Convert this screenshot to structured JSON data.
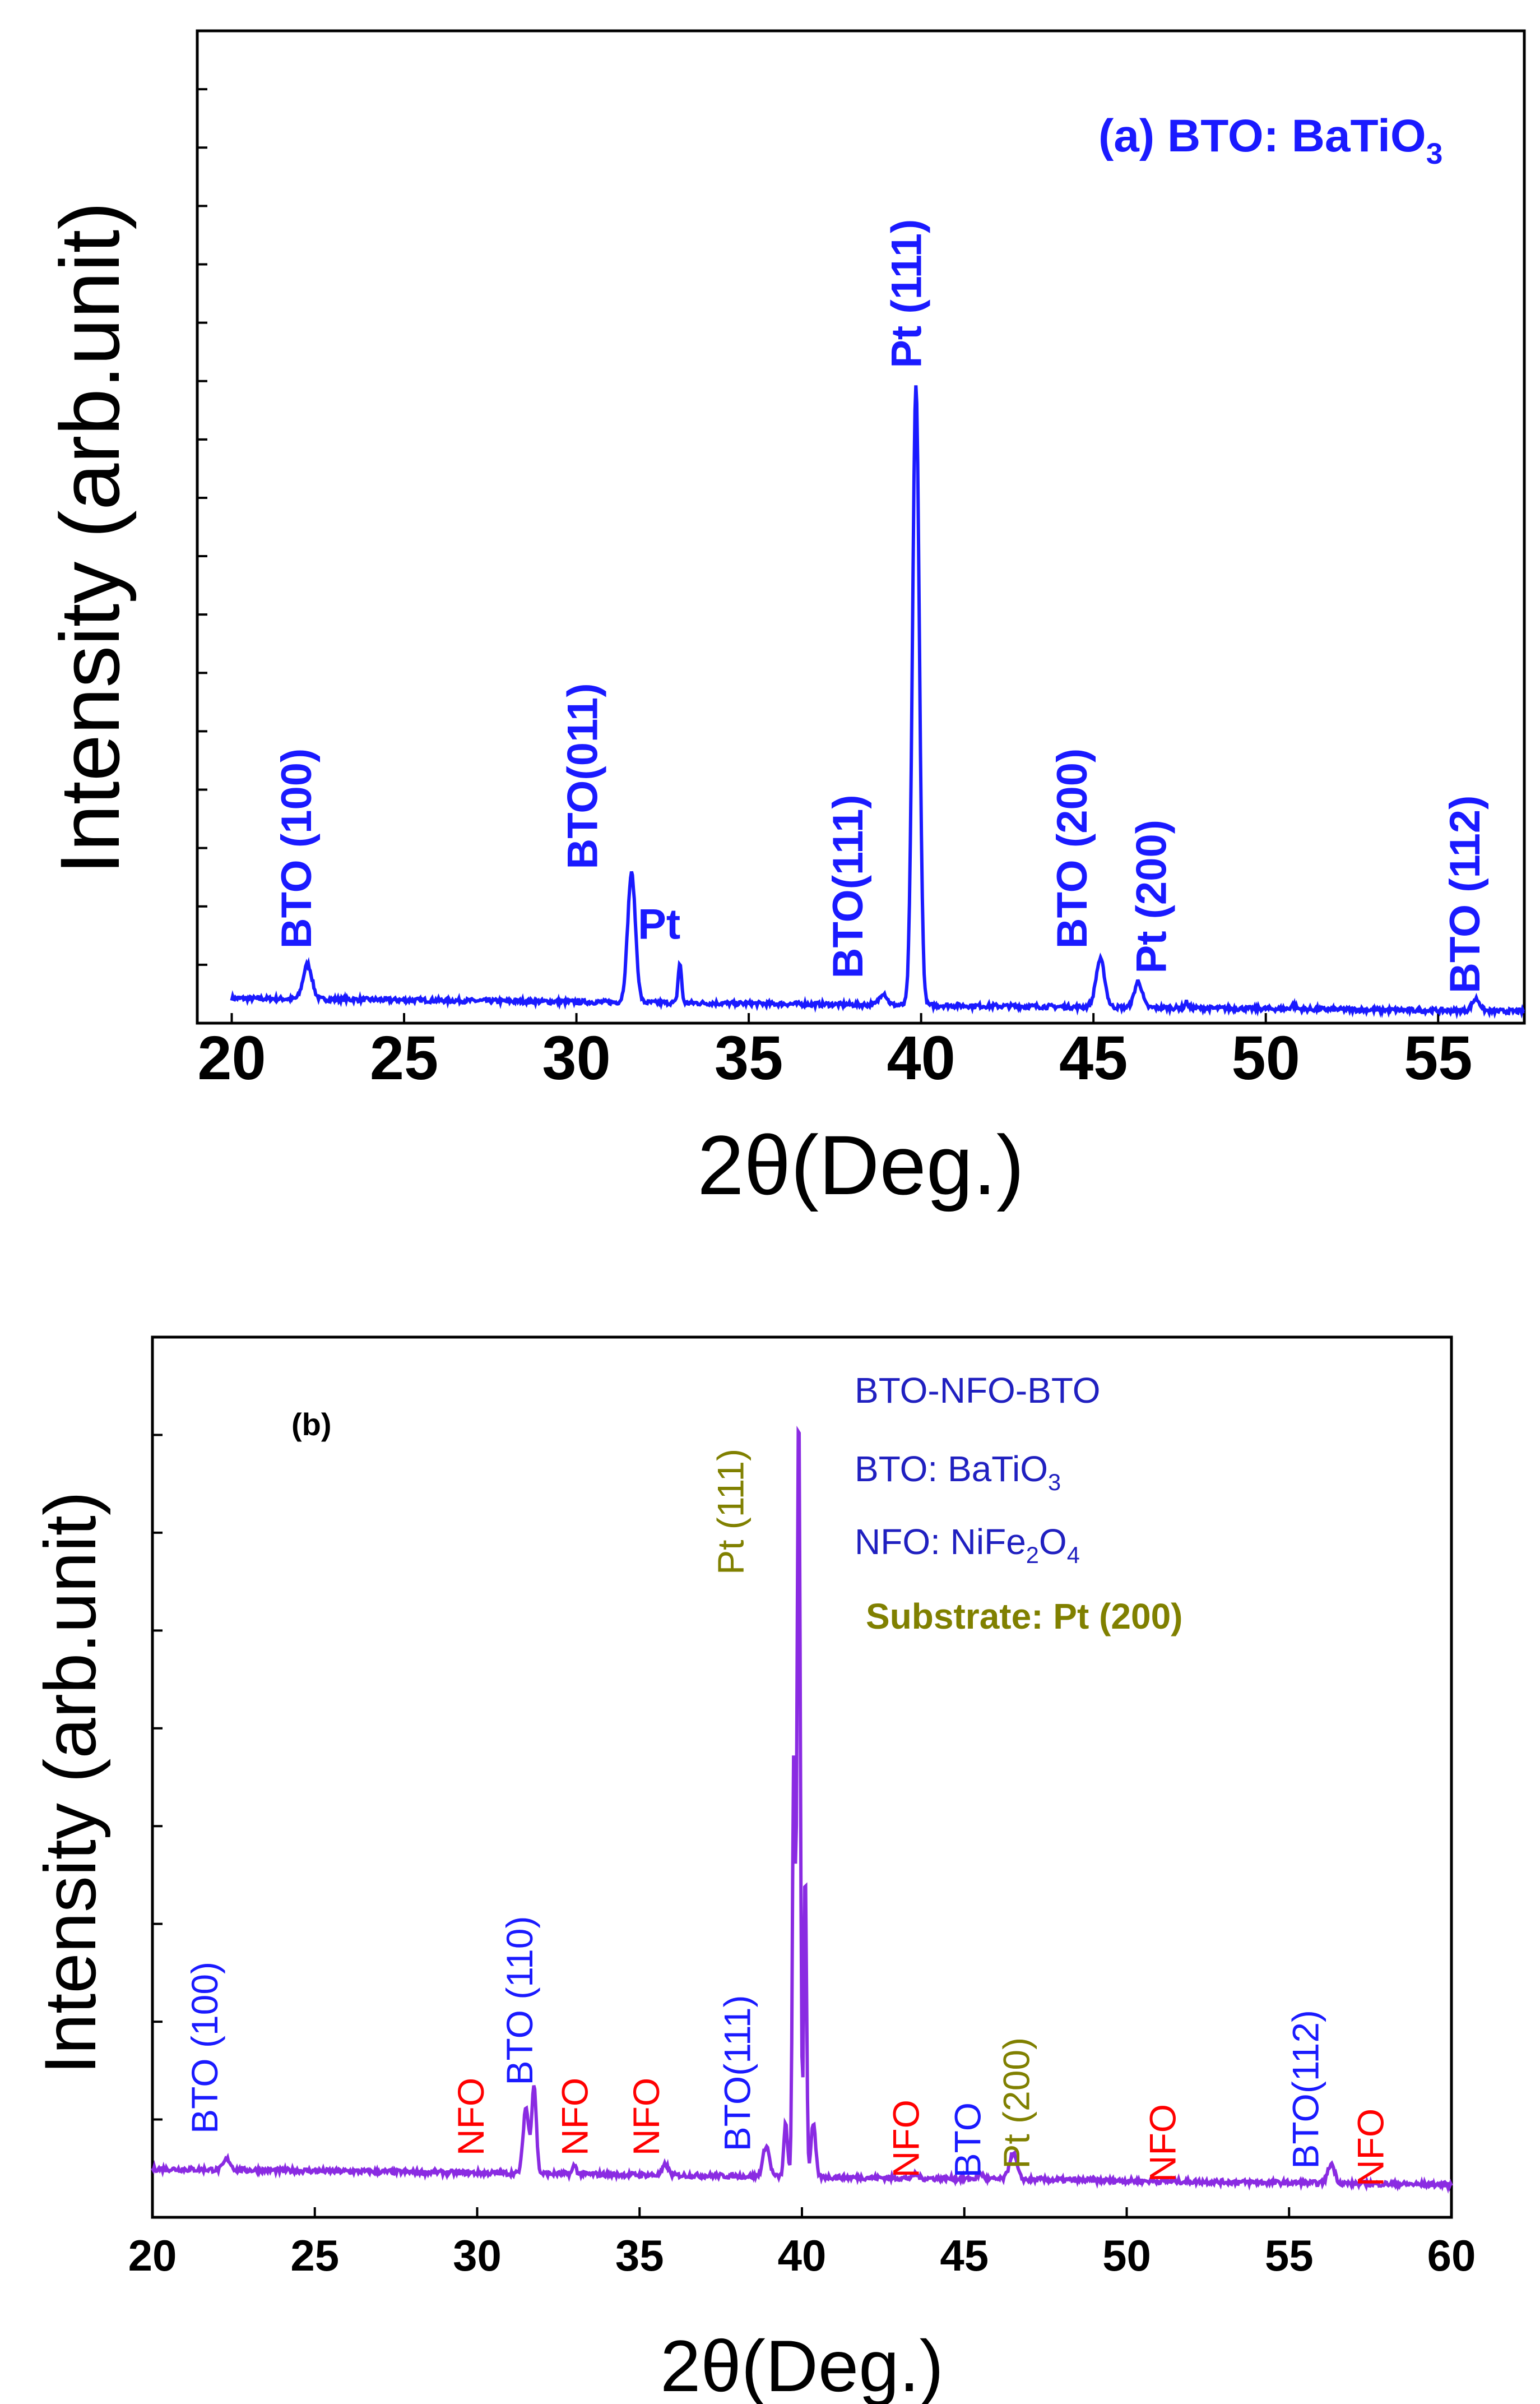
{
  "colors": {
    "blue": "#1a1aff",
    "purple": "#8a2be2",
    "red": "#ff0000",
    "olive": "#808000",
    "navy": "#2020c0"
  },
  "chart_data": [
    {
      "panel": "(a)",
      "type": "line",
      "title": "(a) BTO: BaTiO",
      "title_subscript": "3",
      "xlabel": "2θ(Deg.)",
      "ylabel": "Intensity (arb.unit)",
      "xlim": [
        19,
        57.5
      ],
      "ylim": [
        0,
        100
      ],
      "xticks": [
        20,
        25,
        30,
        35,
        40,
        45,
        50,
        55
      ],
      "ytick_count": 16,
      "baseline": 2.5,
      "peaks": [
        {
          "x": 22.2,
          "h": 3.5,
          "w": 0.18
        },
        {
          "x": 31.6,
          "h": 13.0,
          "w": 0.16
        },
        {
          "x": 33.0,
          "h": 4.0,
          "w": 0.07
        },
        {
          "x": 38.9,
          "h": 1.2,
          "w": 0.15
        },
        {
          "x": 39.85,
          "h": 62.5,
          "w": 0.14
        },
        {
          "x": 45.2,
          "h": 4.8,
          "w": 0.18
        },
        {
          "x": 46.3,
          "h": 2.6,
          "w": 0.16
        },
        {
          "x": 47.7,
          "h": 0.6,
          "w": 0.06
        },
        {
          "x": 50.8,
          "h": 0.4,
          "w": 0.1
        },
        {
          "x": 56.1,
          "h": 1.2,
          "w": 0.16
        }
      ],
      "labels": [
        {
          "text": "BTO (100)",
          "x": 22.3,
          "y": 7.5,
          "rotate": true,
          "color": "blue"
        },
        {
          "text": "BTO(011)",
          "x": 30.6,
          "y": 15.5,
          "rotate": true,
          "color": "blue"
        },
        {
          "text": "Pt",
          "x": 32.4,
          "y": 8.5,
          "rotate": false,
          "color": "blue"
        },
        {
          "text": "BTO(111)",
          "x": 38.3,
          "y": 4.5,
          "rotate": true,
          "color": "blue"
        },
        {
          "text": "Pt (111)",
          "x": 40.0,
          "y": 66.0,
          "rotate": true,
          "color": "blue"
        },
        {
          "text": "BTO (200)",
          "x": 44.8,
          "y": 7.5,
          "rotate": true,
          "color": "blue"
        },
        {
          "text": "Pt (200)",
          "x": 47.1,
          "y": 5.0,
          "rotate": true,
          "color": "blue"
        },
        {
          "text": "BTO (112)",
          "x": 56.2,
          "y": 3.0,
          "rotate": true,
          "color": "blue"
        }
      ]
    },
    {
      "panel": "(b)",
      "type": "line",
      "panel_label": "(b)",
      "xlabel": "2θ(Deg.)",
      "ylabel": "Intensity (arb.unit)",
      "xlim": [
        20,
        60
      ],
      "ylim": [
        0,
        100
      ],
      "xticks": [
        20,
        25,
        30,
        35,
        40,
        45,
        50,
        55,
        60
      ],
      "ytick_count": 8,
      "baseline": 5.5,
      "peaks": [
        {
          "x": 22.3,
          "h": 1.2,
          "w": 0.15
        },
        {
          "x": 31.5,
          "h": 7.5,
          "w": 0.12
        },
        {
          "x": 31.75,
          "h": 10.0,
          "w": 0.1
        },
        {
          "x": 33.0,
          "h": 1.0,
          "w": 0.08
        },
        {
          "x": 35.8,
          "h": 1.2,
          "w": 0.12
        },
        {
          "x": 38.9,
          "h": 3.5,
          "w": 0.14
        },
        {
          "x": 39.5,
          "h": 6.0,
          "w": 0.08
        },
        {
          "x": 39.75,
          "h": 48.0,
          "w": 0.06
        },
        {
          "x": 39.9,
          "h": 88.0,
          "w": 0.07
        },
        {
          "x": 40.1,
          "h": 35.0,
          "w": 0.06
        },
        {
          "x": 40.35,
          "h": 6.0,
          "w": 0.1
        },
        {
          "x": 43.5,
          "h": 0.5,
          "w": 0.1
        },
        {
          "x": 45.5,
          "h": 0.6,
          "w": 0.12
        },
        {
          "x": 46.5,
          "h": 3.0,
          "w": 0.16
        },
        {
          "x": 56.3,
          "h": 2.2,
          "w": 0.15
        }
      ],
      "labels": [
        {
          "text": "BTO (100)",
          "x": 22.0,
          "y": 9.5,
          "rotate": true,
          "color": "blue"
        },
        {
          "text": "BTO (110)",
          "x": 31.7,
          "y": 15.0,
          "rotate": true,
          "color": "blue"
        },
        {
          "text": "NFO",
          "x": 30.2,
          "y": 7.0,
          "rotate": true,
          "color": "red"
        },
        {
          "text": "NFO",
          "x": 33.4,
          "y": 7.0,
          "rotate": true,
          "color": "red"
        },
        {
          "text": "NFO",
          "x": 35.6,
          "y": 7.0,
          "rotate": true,
          "color": "red"
        },
        {
          "text": "BTO(111)",
          "x": 38.4,
          "y": 7.5,
          "rotate": true,
          "color": "blue"
        },
        {
          "text": "Pt (111)",
          "x": 38.2,
          "y": 73.0,
          "rotate": true,
          "color": "olive"
        },
        {
          "text": "NFO",
          "x": 43.6,
          "y": 4.5,
          "rotate": true,
          "color": "red"
        },
        {
          "text": "BTO",
          "x": 45.5,
          "y": 4.5,
          "rotate": true,
          "color": "blue"
        },
        {
          "text": "Pt (200)",
          "x": 47.0,
          "y": 5.5,
          "rotate": true,
          "color": "olive"
        },
        {
          "text": "NFO",
          "x": 51.5,
          "y": 4.0,
          "rotate": true,
          "color": "red"
        },
        {
          "text": "BTO(112)",
          "x": 55.9,
          "y": 5.5,
          "rotate": true,
          "color": "blue"
        },
        {
          "text": "NFO",
          "x": 57.9,
          "y": 3.5,
          "rotate": true,
          "color": "red"
        }
      ],
      "legend": {
        "line1": "BTO-NFO-BTO",
        "line2_prefix": "BTO: BaTiO",
        "line2_sub": "3",
        "line3_a": "NFO: NiFe",
        "line3_sub1": "2",
        "line3_b": "O",
        "line3_sub2": "4",
        "line4": "Substrate: Pt (200)"
      }
    }
  ]
}
